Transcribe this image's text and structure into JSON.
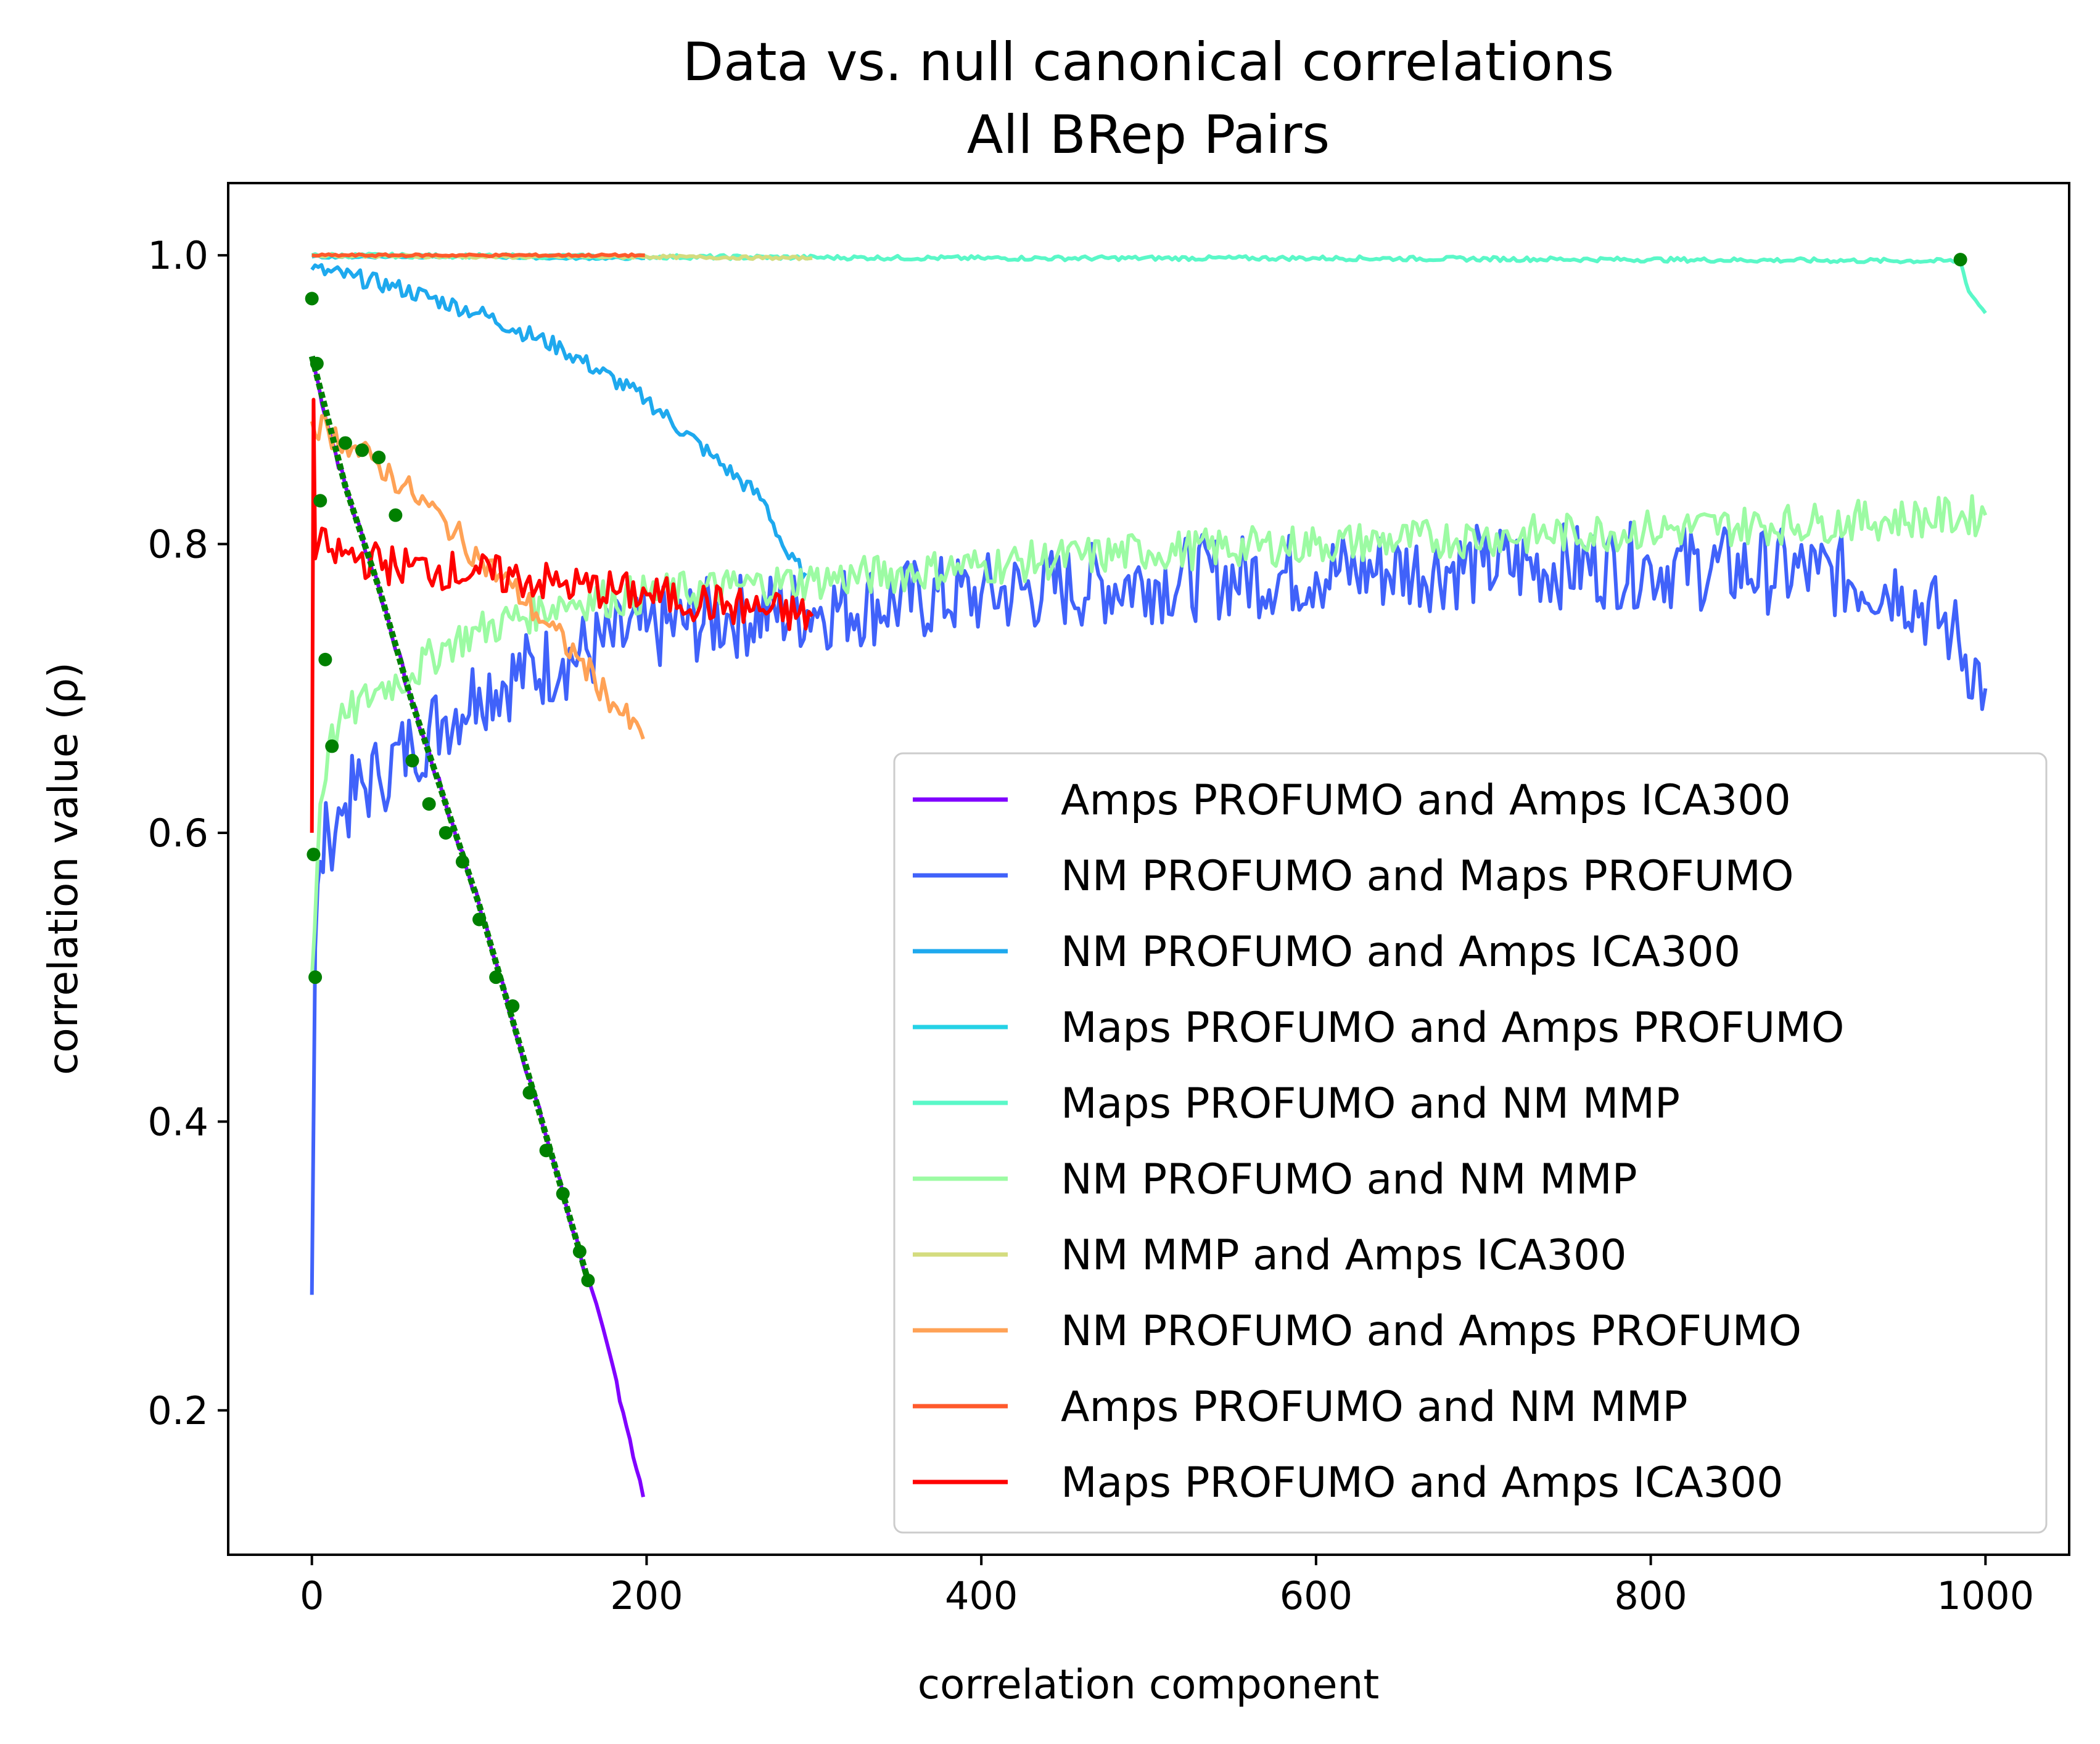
{
  "chart_data": {
    "type": "line",
    "title": "Data vs. null canonical correlations",
    "subtitle": "All BRep Pairs",
    "xlabel": "correlation component",
    "ylabel": "correlation value (ρ)",
    "xlim": [
      -50,
      1050
    ],
    "ylim": [
      0.1,
      1.05
    ],
    "xticks": [
      0,
      200,
      400,
      600,
      800,
      1000
    ],
    "xtick_labels": [
      "0",
      "200",
      "400",
      "600",
      "800",
      "1000"
    ],
    "yticks": [
      0.2,
      0.4,
      0.6,
      0.8,
      1.0
    ],
    "ytick_labels": [
      "0.2",
      "0.4",
      "0.6",
      "0.8",
      "1.0"
    ],
    "grid": false,
    "legend_position": "lower-right",
    "series": [
      {
        "name": "Amps PROFUMO and Amps ICA300",
        "color": "#8000ff",
        "x": [
          0,
          10,
          20,
          40,
          60,
          80,
          100,
          120,
          140,
          160,
          180,
          190,
          198
        ],
        "y": [
          0.93,
          0.88,
          0.84,
          0.77,
          0.69,
          0.62,
          0.55,
          0.47,
          0.39,
          0.31,
          0.23,
          0.18,
          0.14
        ]
      },
      {
        "name": "NM PROFUMO and Maps PROFUMO",
        "color": "#4062fa",
        "x": [
          0,
          2,
          5,
          10,
          20,
          40,
          60,
          80,
          100,
          150,
          200,
          250,
          300,
          400,
          500,
          600,
          700,
          800,
          900,
          950,
          980,
          1000
        ],
        "y": [
          0.28,
          0.52,
          0.58,
          0.6,
          0.62,
          0.64,
          0.66,
          0.68,
          0.7,
          0.72,
          0.74,
          0.75,
          0.755,
          0.765,
          0.775,
          0.78,
          0.785,
          0.785,
          0.78,
          0.77,
          0.74,
          0.7
        ]
      },
      {
        "name": "NM PROFUMO and Amps ICA300",
        "color": "#1ea9ee",
        "x": [
          0,
          25,
          50,
          100,
          150,
          200,
          240,
          270,
          285,
          295
        ],
        "y": [
          0.99,
          0.985,
          0.978,
          0.96,
          0.935,
          0.9,
          0.86,
          0.83,
          0.79,
          0.78
        ]
      },
      {
        "name": "Maps PROFUMO and Amps PROFUMO",
        "color": "#25d2e6",
        "x": [
          0,
          50,
          100,
          150,
          199
        ],
        "y": [
          0.999,
          0.999,
          0.999,
          0.998,
          0.998
        ]
      },
      {
        "name": "Maps PROFUMO and NM MMP",
        "color": "#5af8c8",
        "x": [
          0,
          200,
          400,
          600,
          800,
          985,
          990,
          1000
        ],
        "y": [
          1.0,
          0.999,
          0.998,
          0.998,
          0.997,
          0.996,
          0.975,
          0.96
        ]
      },
      {
        "name": "NM PROFUMO and NM MMP",
        "color": "#9cfba3",
        "x": [
          0,
          5,
          10,
          20,
          40,
          60,
          80,
          100,
          150,
          200,
          250,
          300,
          400,
          500,
          600,
          700,
          800,
          900,
          1000
        ],
        "y": [
          0.5,
          0.62,
          0.66,
          0.68,
          0.7,
          0.71,
          0.73,
          0.74,
          0.76,
          0.765,
          0.77,
          0.775,
          0.785,
          0.795,
          0.8,
          0.805,
          0.81,
          0.815,
          0.82
        ]
      },
      {
        "name": "NM MMP and Amps ICA300",
        "color": "#d4dc7f",
        "x": [
          0,
          100,
          200,
          299
        ],
        "y": [
          1.0,
          0.999,
          0.999,
          0.998
        ]
      },
      {
        "name": "NM PROFUMO and Amps PROFUMO",
        "color": "#ffa256",
        "x": [
          0,
          20,
          40,
          60,
          80,
          100,
          120,
          140,
          160,
          180,
          198
        ],
        "y": [
          0.885,
          0.87,
          0.855,
          0.835,
          0.815,
          0.79,
          0.77,
          0.745,
          0.72,
          0.69,
          0.665
        ]
      },
      {
        "name": "Amps PROFUMO and NM MMP",
        "color": "#ff5a2c",
        "x": [
          0,
          100,
          199
        ],
        "y": [
          1.0,
          1.0,
          1.0
        ]
      },
      {
        "name": "Maps PROFUMO and Amps ICA300",
        "color": "#ff0000",
        "x": [
          0,
          1,
          2,
          4,
          10,
          50,
          100,
          150,
          200,
          250,
          299
        ],
        "y": [
          0.6,
          0.9,
          0.79,
          0.8,
          0.795,
          0.785,
          0.78,
          0.772,
          0.765,
          0.757,
          0.75
        ]
      }
    ],
    "null_markers": {
      "color": "#008000",
      "x": [
        0,
        1,
        2,
        3,
        5,
        8,
        12,
        20,
        30,
        40,
        50,
        60,
        70,
        80,
        90,
        100,
        110,
        120,
        130,
        140,
        150,
        160,
        165,
        985
      ],
      "y": [
        0.97,
        0.585,
        0.5,
        0.925,
        0.83,
        0.72,
        0.66,
        0.87,
        0.865,
        0.86,
        0.82,
        0.65,
        0.62,
        0.6,
        0.58,
        0.54,
        0.5,
        0.48,
        0.42,
        0.38,
        0.35,
        0.31,
        0.29,
        0.997
      ],
      "dense_x": [
        0,
        20,
        40,
        60,
        80,
        100,
        120,
        140,
        165
      ],
      "dense_y": [
        0.93,
        0.84,
        0.77,
        0.69,
        0.62,
        0.55,
        0.47,
        0.39,
        0.29
      ]
    }
  }
}
